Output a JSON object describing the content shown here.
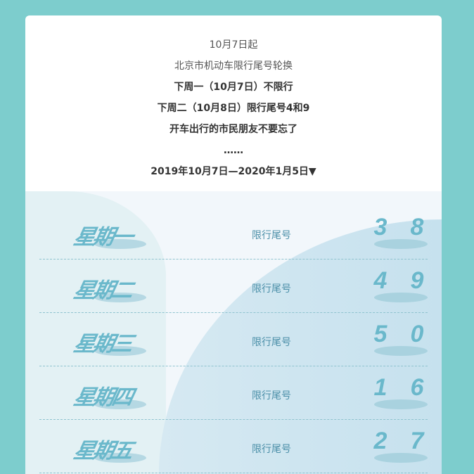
{
  "intro": {
    "line1": "10月7日起",
    "line2": "北京市机动车限行尾号轮换",
    "line3": "下周一（10月7日）不限行",
    "line4": "下周二（10月8日）限行尾号4和9",
    "line5": "开车出行的市民朋友不要忘了",
    "line6": "……",
    "line7": "2019年10月7日—2020年1月5日▼"
  },
  "schedule": [
    {
      "day": "星期一",
      "label": "限行尾号",
      "d1": "3",
      "d2": "8"
    },
    {
      "day": "星期二",
      "label": "限行尾号",
      "d1": "4",
      "d2": "9"
    },
    {
      "day": "星期三",
      "label": "限行尾号",
      "d1": "5",
      "d2": "0"
    },
    {
      "day": "星期四",
      "label": "限行尾号",
      "d1": "1",
      "d2": "6"
    },
    {
      "day": "星期五",
      "label": "限行尾号",
      "d1": "2",
      "d2": "7"
    }
  ],
  "colors": {
    "background": "#7dcdcd",
    "accent": "#6ab8cb"
  }
}
